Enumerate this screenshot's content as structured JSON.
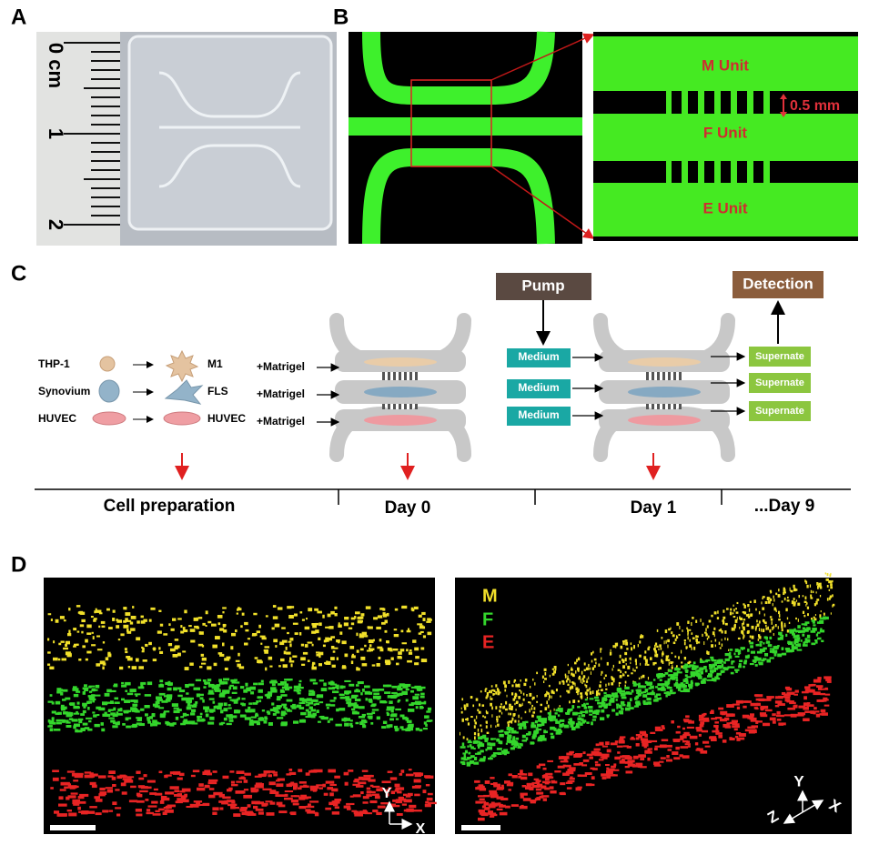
{
  "panel_labels": [
    "A",
    "B",
    "C",
    "D"
  ],
  "panel_a": {
    "ruler_labels": [
      "0 cm",
      "1",
      "2"
    ]
  },
  "panel_b": {
    "units": [
      "M Unit",
      "F Unit",
      "E Unit"
    ],
    "scale": "0.5 mm"
  },
  "panel_c": {
    "pump": "Pump",
    "detection": "Detection",
    "cells": [
      {
        "name": "THP-1",
        "result": "M1"
      },
      {
        "name": "Synovium",
        "result": "FLS"
      },
      {
        "name": "HUVEC",
        "result": "HUVEC"
      }
    ],
    "matrigel": [
      "+Matrigel",
      "+Matrigel",
      "+Matrigel"
    ],
    "medium": [
      "Medium",
      "Medium",
      "Medium"
    ],
    "supernate": [
      "Supernate",
      "Supernate",
      "Supernate"
    ],
    "timeline": [
      "Cell preparation",
      "Day 0",
      "Day 1",
      "...Day 9"
    ]
  },
  "panel_d": {
    "legend": [
      "M",
      "F",
      "E"
    ],
    "axes_left": [
      "Y",
      "X"
    ],
    "axes_right": [
      "Z",
      "Y",
      "X"
    ]
  }
}
